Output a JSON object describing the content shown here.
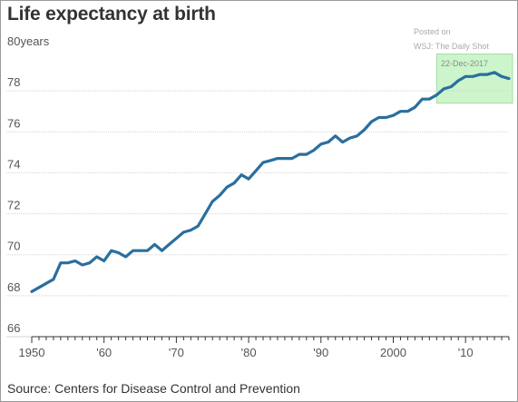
{
  "chart_data": {
    "type": "line",
    "title": "Life expectancy at birth",
    "unit_label": "years",
    "source": "Source: Centers for Disease Control and Prevention",
    "x_ticks": [
      {
        "value": 1950,
        "label": "1950"
      },
      {
        "value": 1960,
        "label": "'60"
      },
      {
        "value": 1970,
        "label": "'70"
      },
      {
        "value": 1980,
        "label": "'80"
      },
      {
        "value": 1990,
        "label": "'90"
      },
      {
        "value": 2000,
        "label": "2000"
      },
      {
        "value": 2010,
        "label": "'10"
      }
    ],
    "y_ticks": [
      {
        "value": 66,
        "label": "66"
      },
      {
        "value": 68,
        "label": "68"
      },
      {
        "value": 70,
        "label": "70"
      },
      {
        "value": 72,
        "label": "72"
      },
      {
        "value": 74,
        "label": "74"
      },
      {
        "value": 76,
        "label": "76"
      },
      {
        "value": 78,
        "label": "78"
      },
      {
        "value": 80,
        "label": "80"
      }
    ],
    "xlim": [
      1950,
      2016
    ],
    "ylim": [
      66,
      80
    ],
    "grid": "horizontal",
    "series_color": "#2a6f9e",
    "series": [
      {
        "x": [
          1950,
          1951,
          1952,
          1953,
          1954,
          1955,
          1956,
          1957,
          1958,
          1959,
          1960,
          1961,
          1962,
          1963,
          1964,
          1965,
          1966,
          1967,
          1968,
          1969,
          1970,
          1971,
          1972,
          1973,
          1974,
          1975,
          1976,
          1977,
          1978,
          1979,
          1980,
          1981,
          1982,
          1983,
          1984,
          1985,
          1986,
          1987,
          1988,
          1989,
          1990,
          1991,
          1992,
          1993,
          1994,
          1995,
          1996,
          1997,
          1998,
          1999,
          2000,
          2001,
          2002,
          2003,
          2004,
          2005,
          2006,
          2007,
          2008,
          2009,
          2010,
          2011,
          2012,
          2013,
          2014,
          2015,
          2016
        ],
        "y": [
          68.2,
          68.4,
          68.6,
          68.8,
          69.6,
          69.6,
          69.7,
          69.5,
          69.6,
          69.9,
          69.7,
          70.2,
          70.1,
          69.9,
          70.2,
          70.2,
          70.2,
          70.5,
          70.2,
          70.5,
          70.8,
          71.1,
          71.2,
          71.4,
          72.0,
          72.6,
          72.9,
          73.3,
          73.5,
          73.9,
          73.7,
          74.1,
          74.5,
          74.6,
          74.7,
          74.7,
          74.7,
          74.9,
          74.9,
          75.1,
          75.4,
          75.5,
          75.8,
          75.5,
          75.7,
          75.8,
          76.1,
          76.5,
          76.7,
          76.7,
          76.8,
          77.0,
          77.0,
          77.2,
          77.6,
          77.6,
          77.8,
          78.1,
          78.2,
          78.5,
          78.7,
          78.7,
          78.8,
          78.8,
          78.9,
          78.7,
          78.6
        ]
      }
    ],
    "annotation": {
      "lines": [
        "Posted on",
        "WSJ: The Daily Shot",
        "22-Dec-2017"
      ],
      "box_color": "#ccf5cc",
      "box_border": "#a6dca6",
      "x_range": [
        2006,
        2016.5
      ],
      "y_range": [
        77.4,
        79.8
      ]
    }
  }
}
